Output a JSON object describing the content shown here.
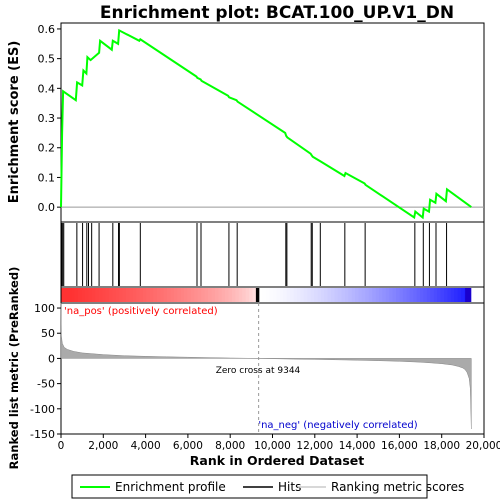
{
  "chart_data": {
    "type": "line",
    "title": "Enrichment plot: BCAT.100_UP.V1_DN",
    "xlabel": "Rank in Ordered Dataset",
    "ylabel_top": "Enrichment score (ES)",
    "ylabel_bottom": "Ranked list metric (PreRanked)",
    "xlim": [
      0,
      20000
    ],
    "x_ticks": [
      0,
      2000,
      4000,
      6000,
      8000,
      10000,
      12000,
      14000,
      16000,
      18000,
      20000
    ],
    "x_tick_labels": [
      "0",
      "2,000",
      "4,000",
      "6,000",
      "8,000",
      "10,000",
      "12,000",
      "14,000",
      "16,000",
      "18,000",
      "20,000"
    ],
    "es_ylim": [
      -0.05,
      0.62
    ],
    "es_ticks": [
      0.0,
      0.1,
      0.2,
      0.3,
      0.4,
      0.5,
      0.6
    ],
    "es_tick_labels": [
      "0.0",
      "0.1",
      "0.2",
      "0.3",
      "0.4",
      "0.5",
      "0.6"
    ],
    "metric_ylim": [
      -150,
      110
    ],
    "metric_ticks": [
      100,
      50,
      0,
      -50,
      -100,
      -150
    ],
    "metric_tick_labels": [
      "100",
      "50",
      "0",
      "-50",
      "-100",
      "-150"
    ],
    "n_genes": 19400,
    "zero_cross": 9344,
    "zero_cross_label": "Zero cross at 9344",
    "pos_label": "'na_pos' (positively correlated)",
    "neg_label": "'na_neg' (negatively correlated)",
    "legend": [
      "Enrichment profile",
      "Hits",
      "Ranking metric scores"
    ],
    "es_curve": {
      "x": [
        0,
        50,
        100,
        700,
        760,
        1000,
        1060,
        1200,
        1250,
        1400,
        1800,
        1850,
        2400,
        2450,
        2700,
        2750,
        3700,
        3750,
        6400,
        6450,
        6600,
        6650,
        7900,
        7950,
        8300,
        8350,
        10600,
        10650,
        10700,
        11800,
        11850,
        11900,
        12250,
        13400,
        13450,
        14350,
        14400,
        16700,
        16750,
        17100,
        17150,
        17400,
        17450,
        17700,
        17750,
        18200,
        18250,
        19400
      ],
      "y": [
        0.0,
        0.25,
        0.39,
        0.36,
        0.42,
        0.41,
        0.46,
        0.45,
        0.505,
        0.495,
        0.52,
        0.56,
        0.53,
        0.56,
        0.55,
        0.595,
        0.56,
        0.565,
        0.44,
        0.435,
        0.43,
        0.425,
        0.375,
        0.37,
        0.36,
        0.355,
        0.25,
        0.24,
        0.235,
        0.18,
        0.175,
        0.17,
        0.155,
        0.105,
        0.115,
        0.08,
        0.075,
        -0.035,
        -0.015,
        -0.035,
        -0.005,
        -0.015,
        0.025,
        0.015,
        0.045,
        0.02,
        0.06,
        0.0
      ]
    },
    "hits": [
      30,
      80,
      130,
      750,
      1020,
      1220,
      1300,
      1450,
      1800,
      2450,
      2720,
      2760,
      3750,
      6430,
      6620,
      7940,
      8330,
      10630,
      10680,
      11830,
      11880,
      12260,
      13420,
      14380,
      16730,
      17130,
      17420,
      17730,
      18230
    ],
    "metric_curve": {
      "x": [
        0,
        20,
        60,
        150,
        300,
        600,
        1000,
        2000,
        3000,
        4000,
        5000,
        6000,
        7000,
        8000,
        9344,
        10000,
        11000,
        12000,
        13000,
        14000,
        15000,
        16000,
        17000,
        17500,
        18000,
        18500,
        18800,
        19000,
        19100,
        19200,
        19300,
        19350,
        19400
      ],
      "y": [
        110,
        45,
        30,
        22,
        18,
        14,
        11,
        7.5,
        5.5,
        4.2,
        3.2,
        2.4,
        1.6,
        0.9,
        0,
        -0.6,
        -1.3,
        -2,
        -2.8,
        -3.6,
        -4.6,
        -5.8,
        -7.5,
        -8.8,
        -10.5,
        -13,
        -16,
        -19,
        -22,
        -28,
        -40,
        -60,
        -140
      ]
    },
    "colors": {
      "es_line": "#00ff00",
      "hits": "#000000",
      "metric_fill": "#aaaaaa",
      "grid_zero": "#999999",
      "pos_label": "#ff0000",
      "neg_label": "#0000cc"
    }
  }
}
